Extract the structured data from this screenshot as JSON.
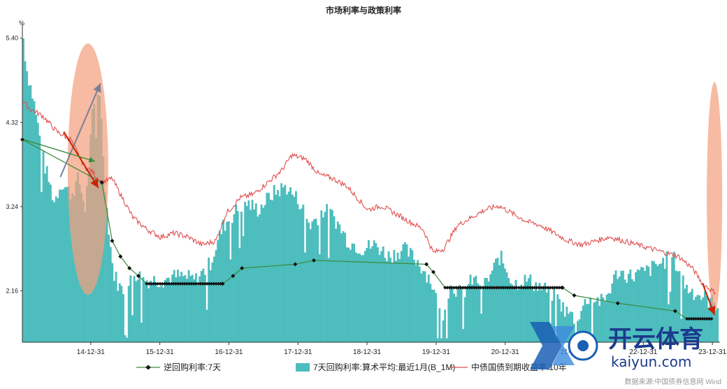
{
  "title": "市场利率与政策利率",
  "source": "数据来源:中国债券信息网 Wind",
  "watermark": {
    "brand": "开云体育",
    "site": "kaiyun.com"
  },
  "colors": {
    "bars": "#4DBDBD",
    "bond": "#E05050",
    "repo": "#3A8A3A",
    "highlight": "#F4A07E",
    "arrow": "#CC2200"
  },
  "chart_data": {
    "type": "bar",
    "title": "市场利率与政策利率",
    "ylabel": "%",
    "ylim": [
      1.5,
      5.55
    ],
    "yticks": [
      2.16,
      3.24,
      4.32,
      5.4
    ],
    "xlim": [
      2014.0,
      2024.1
    ],
    "xticks": [
      "14-12-31",
      "15-12-31",
      "16-12-31",
      "17-12-31",
      "18-12-31",
      "19-12-31",
      "20-12-31",
      "21-12-31",
      "22-12-31",
      "23-12-31"
    ],
    "legend_position": "bottom",
    "series": [
      {
        "name": "逆回购利率:7天",
        "type": "step",
        "x": [
          2014.0,
          2015.15,
          2015.3,
          2015.42,
          2015.55,
          2015.68,
          2015.8,
          2016.9,
          2017.05,
          2017.18,
          2017.95,
          2018.22,
          2019.85,
          2019.95,
          2020.12,
          2021.82,
          2021.99,
          2022.62,
          2023.45,
          2023.62,
          2024.0
        ],
        "values": [
          4.1,
          3.55,
          2.8,
          2.6,
          2.45,
          2.35,
          2.25,
          2.25,
          2.35,
          2.45,
          2.5,
          2.55,
          2.5,
          2.4,
          2.2,
          2.2,
          2.1,
          2.0,
          1.9,
          1.8,
          1.8
        ]
      },
      {
        "name": "7天回购利率:算术平均:最近1月(B_1M)",
        "type": "bar",
        "x": [
          2014.0,
          2014.05,
          2014.15,
          2014.3,
          2014.45,
          2014.55,
          2014.7,
          2014.8,
          2014.9,
          2015.0,
          2015.1,
          2015.2,
          2015.3,
          2015.4,
          2015.5,
          2015.6,
          2015.75,
          2016.0,
          2016.25,
          2016.5,
          2016.7,
          2016.9,
          2017.0,
          2017.2,
          2017.4,
          2017.6,
          2017.8,
          2018.0,
          2018.15,
          2018.35,
          2018.5,
          2018.7,
          2018.9,
          2019.1,
          2019.3,
          2019.5,
          2019.7,
          2019.9,
          2020.05,
          2020.2,
          2020.35,
          2020.5,
          2020.7,
          2020.9,
          2021.1,
          2021.3,
          2021.5,
          2021.7,
          2021.85,
          2022.0,
          2022.2,
          2022.4,
          2022.6,
          2022.8,
          2023.0,
          2023.2,
          2023.4,
          2023.6,
          2023.8,
          2024.0
        ],
        "values": [
          5.4,
          5.0,
          4.6,
          3.8,
          3.3,
          3.55,
          3.4,
          3.6,
          3.2,
          4.4,
          4.8,
          3.3,
          2.4,
          2.2,
          2.15,
          2.4,
          2.3,
          2.3,
          2.35,
          2.3,
          2.5,
          3.0,
          3.1,
          3.3,
          3.2,
          3.4,
          3.5,
          3.3,
          3.0,
          3.2,
          3.1,
          2.8,
          2.7,
          2.75,
          2.6,
          2.7,
          2.55,
          2.3,
          1.8,
          2.25,
          2.1,
          2.3,
          2.25,
          2.6,
          2.25,
          2.3,
          2.2,
          2.1,
          1.9,
          1.8,
          2.1,
          2.0,
          2.4,
          2.35,
          2.4,
          2.5,
          2.6,
          2.2,
          2.1,
          2.0
        ]
      },
      {
        "name": "中债国债到期收益率:10年",
        "type": "line",
        "x": [
          2014.0,
          2014.1,
          2014.3,
          2014.5,
          2014.7,
          2014.9,
          2015.0,
          2015.15,
          2015.3,
          2015.45,
          2015.6,
          2015.8,
          2016.0,
          2016.2,
          2016.4,
          2016.6,
          2016.8,
          2016.95,
          2017.15,
          2017.35,
          2017.55,
          2017.75,
          2017.9,
          2018.1,
          2018.3,
          2018.5,
          2018.7,
          2018.85,
          2019.0,
          2019.2,
          2019.4,
          2019.6,
          2019.8,
          2019.95,
          2020.1,
          2020.3,
          2020.5,
          2020.7,
          2020.9,
          2021.1,
          2021.3,
          2021.5,
          2021.7,
          2021.9,
          2022.1,
          2022.3,
          2022.5,
          2022.7,
          2022.9,
          2023.1,
          2023.3,
          2023.5,
          2023.7,
          2023.85,
          2024.0
        ],
        "values": [
          4.6,
          4.5,
          4.4,
          4.2,
          4.1,
          3.75,
          3.7,
          3.55,
          3.6,
          3.35,
          3.1,
          2.95,
          2.85,
          2.9,
          2.85,
          2.75,
          2.8,
          3.15,
          3.35,
          3.4,
          3.55,
          3.7,
          3.9,
          3.85,
          3.65,
          3.6,
          3.5,
          3.35,
          3.2,
          3.25,
          3.15,
          3.05,
          2.95,
          2.65,
          2.7,
          3.0,
          3.1,
          3.2,
          3.25,
          3.15,
          3.05,
          3.0,
          2.9,
          2.8,
          2.75,
          2.8,
          2.85,
          2.8,
          2.75,
          2.7,
          2.65,
          2.6,
          2.45,
          2.25,
          2.15
        ]
      }
    ]
  }
}
